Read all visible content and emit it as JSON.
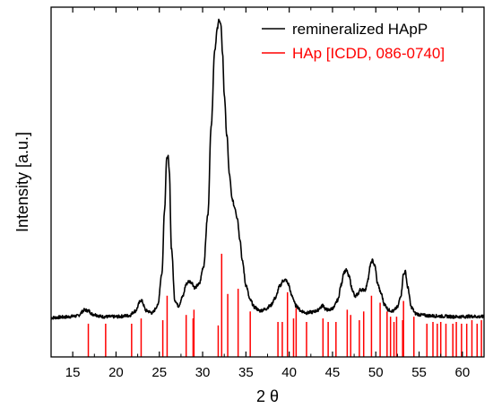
{
  "chart_data": {
    "type": "line",
    "xlabel": "2 θ",
    "ylabel": "Intensity [a.u.]",
    "xlim": [
      12.5,
      62.5
    ],
    "ylim": [
      0,
      100
    ],
    "x_ticks": [
      15,
      20,
      25,
      30,
      35,
      40,
      45,
      50,
      55,
      60
    ],
    "x_tick_labels": [
      "15",
      "20",
      "25",
      "30",
      "35",
      "40",
      "45",
      "50",
      "55",
      "60"
    ],
    "y_ticks_shown": false,
    "legend_position": "top-right",
    "series": [
      {
        "name": "remineralized HApP",
        "style": "line",
        "color": "#000000",
        "baseline": 11.2,
        "x": [
          12.5,
          14.0,
          15.5,
          16.4,
          16.8,
          17.3,
          18.5,
          20.0,
          21.5,
          22.2,
          22.9,
          23.5,
          24.2,
          24.8,
          25.3,
          25.6,
          25.85,
          26.0,
          26.15,
          26.4,
          26.8,
          27.2,
          27.7,
          28.1,
          28.4,
          28.7,
          29.1,
          29.6,
          30.1,
          30.6,
          31.0,
          31.4,
          31.7,
          31.9,
          32.1,
          32.3,
          32.5,
          32.8,
          33.1,
          33.4,
          33.7,
          34.0,
          34.3,
          34.6,
          35.0,
          35.5,
          36.0,
          36.6,
          37.2,
          37.8,
          38.4,
          38.9,
          39.3,
          39.6,
          39.9,
          40.3,
          40.8,
          41.4,
          42.0,
          42.6,
          43.2,
          43.6,
          43.9,
          44.2,
          44.6,
          45.1,
          45.6,
          46.0,
          46.3,
          46.6,
          46.9,
          47.3,
          47.6,
          47.9,
          48.2,
          48.5,
          48.8,
          49.1,
          49.4,
          49.6,
          49.9,
          50.2,
          50.6,
          51.0,
          51.5,
          52.0,
          52.5,
          52.9,
          53.2,
          53.4,
          53.7,
          54.1,
          54.6,
          55.2,
          56.0,
          57.0,
          58.0,
          59.0,
          60.0,
          61.0,
          62.0,
          62.5
        ],
        "y": [
          11.2,
          11.4,
          11.7,
          13.4,
          13.2,
          12.2,
          11.5,
          11.5,
          11.8,
          13.1,
          16.2,
          13.2,
          12.6,
          14.6,
          23.8,
          42.0,
          56.5,
          57.5,
          53.0,
          31.0,
          16.2,
          14.6,
          17.2,
          20.8,
          21.6,
          21.4,
          19.8,
          20.8,
          25.8,
          40.5,
          66.5,
          87.8,
          93.8,
          96.6,
          95.0,
          87.0,
          75.0,
          63.2,
          52.0,
          45.2,
          42.8,
          39.8,
          33.8,
          27.2,
          20.5,
          16.2,
          14.2,
          13.2,
          13.6,
          14.6,
          16.8,
          20.2,
          21.8,
          22.0,
          20.8,
          17.5,
          14.6,
          13.1,
          12.6,
          12.8,
          13.2,
          14.1,
          14.8,
          13.6,
          13.4,
          14.0,
          16.2,
          20.5,
          24.2,
          24.8,
          23.0,
          19.2,
          17.2,
          17.9,
          19.2,
          19.2,
          19.2,
          22.2,
          26.5,
          27.6,
          26.0,
          21.0,
          18.2,
          15.0,
          13.4,
          13.1,
          14.2,
          17.6,
          23.6,
          24.4,
          19.8,
          14.2,
          12.4,
          12.0,
          11.8,
          11.7,
          11.6,
          11.5,
          11.5,
          11.6,
          11.5,
          11.5
        ]
      },
      {
        "name": "HAp [ICDD, 086-0740]",
        "style": "sticks",
        "color": "#ff0000",
        "x": [
          16.8,
          18.8,
          21.8,
          22.9,
          25.4,
          25.9,
          28.1,
          28.9,
          29.0,
          31.8,
          32.2,
          32.9,
          34.1,
          35.5,
          38.7,
          39.2,
          39.8,
          40.5,
          40.8,
          42.0,
          43.9,
          44.5,
          45.4,
          46.7,
          47.1,
          48.1,
          48.6,
          49.5,
          50.5,
          51.3,
          51.7,
          52.1,
          52.4,
          53.1,
          53.2,
          54.4,
          55.9,
          56.6,
          57.1,
          57.5,
          58.1,
          58.9,
          59.3,
          59.9,
          60.5,
          61.1,
          61.7,
          62.2
        ],
        "y": [
          9.5,
          9.5,
          9.5,
          11.0,
          10.5,
          17.5,
          12.0,
          11.0,
          13.5,
          9.0,
          29.5,
          18.0,
          19.5,
          13.0,
          10.0,
          10.0,
          18.5,
          11.0,
          14.0,
          10.0,
          11.0,
          10.0,
          10.0,
          13.5,
          12.0,
          10.5,
          13.0,
          17.5,
          15.5,
          13.0,
          11.5,
          10.0,
          11.5,
          10.5,
          16.0,
          11.5,
          9.5,
          10.0,
          9.5,
          10.0,
          9.5,
          9.5,
          10.0,
          9.5,
          9.5,
          10.5,
          9.5,
          10.5
        ]
      }
    ]
  }
}
